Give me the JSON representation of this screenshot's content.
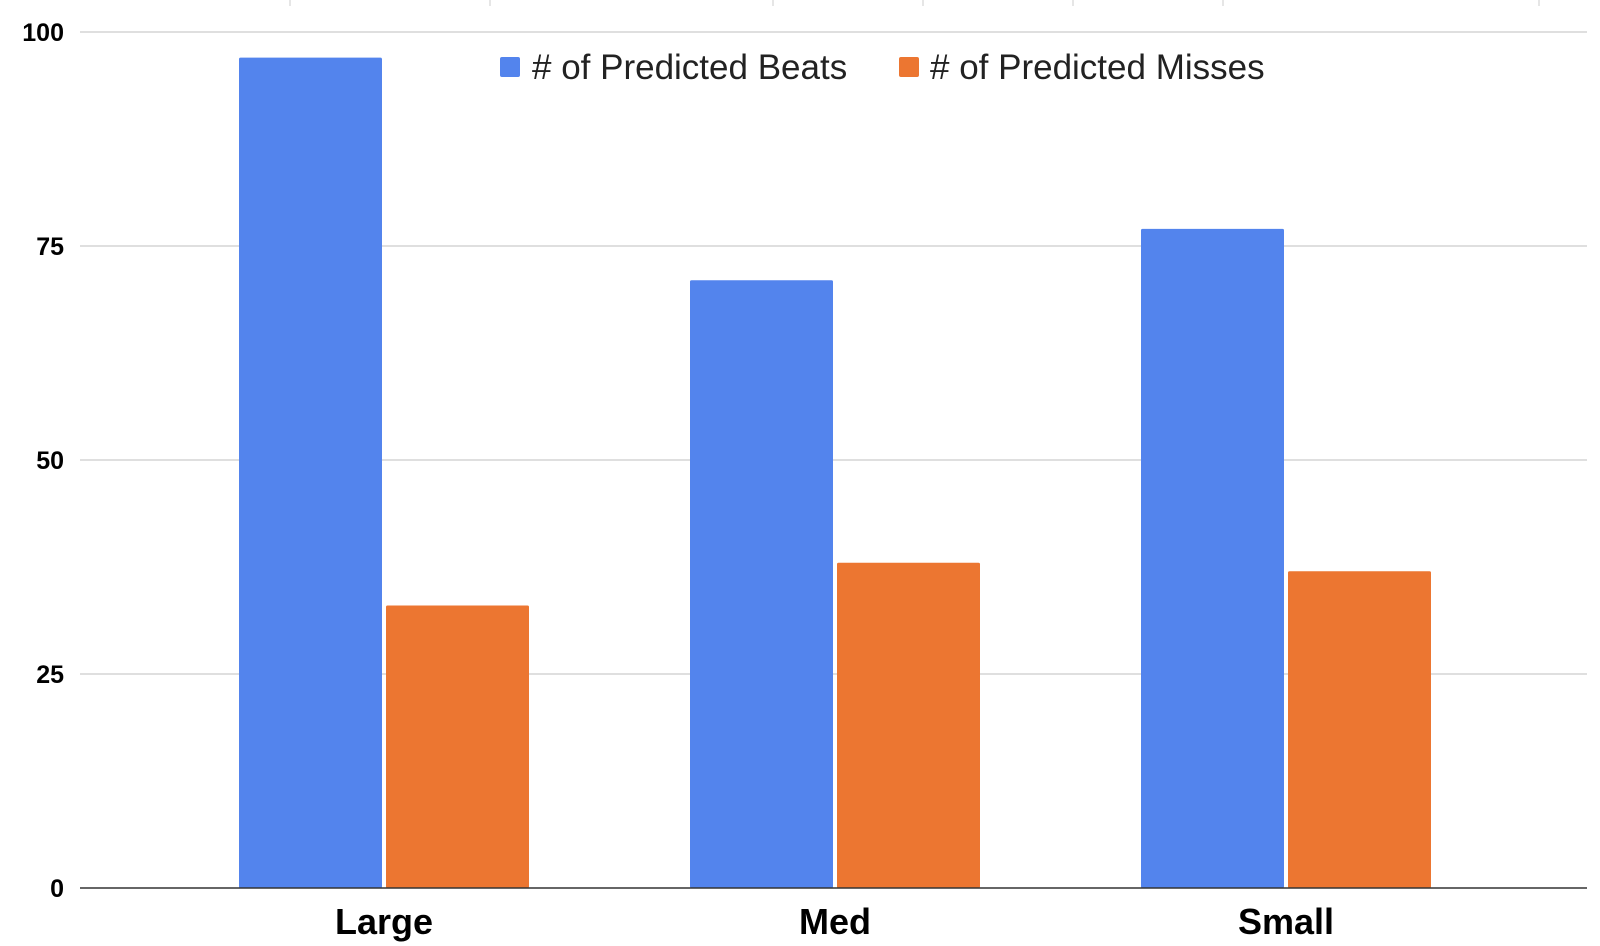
{
  "chart_data": {
    "type": "bar",
    "categories": [
      "Large",
      "Med",
      "Small"
    ],
    "series": [
      {
        "name": "# of Predicted Beats",
        "color": "#5384ED",
        "values": [
          97,
          71,
          77
        ]
      },
      {
        "name": "# of Predicted Misses",
        "color": "#EC7631",
        "values": [
          33,
          38,
          37
        ]
      }
    ],
    "title": "",
    "xlabel": "",
    "ylabel": "",
    "ylim": [
      0,
      100
    ],
    "yticks": [
      0,
      25,
      50,
      75,
      100
    ],
    "grid": true,
    "legend_position": "top"
  }
}
